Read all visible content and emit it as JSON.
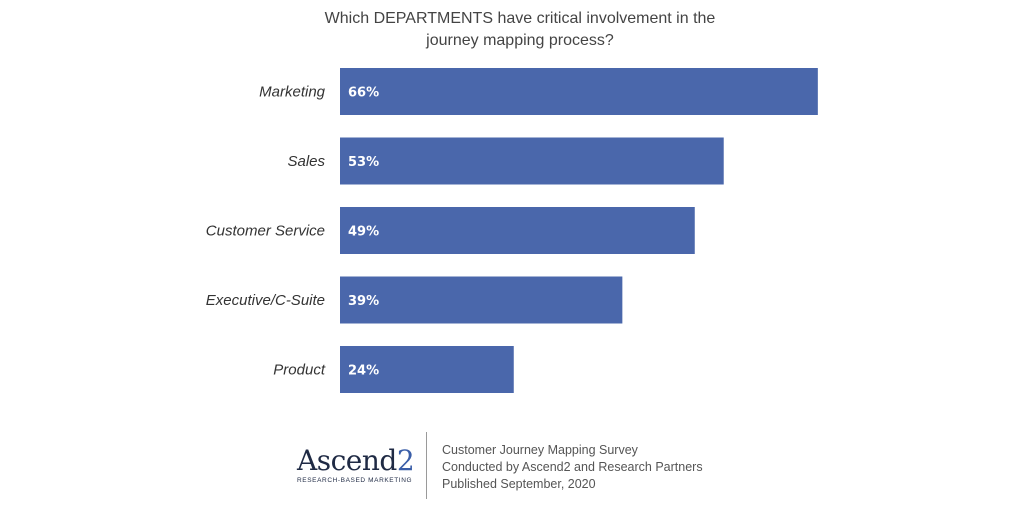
{
  "chart_data": {
    "type": "bar",
    "orientation": "horizontal",
    "title_lines": [
      "Which DEPARTMENTS have critical involvement in the",
      "journey mapping process?"
    ],
    "categories": [
      "Marketing",
      "Sales",
      "Customer Service",
      "Executive/C-Suite",
      "Product"
    ],
    "values": [
      66,
      53,
      49,
      39,
      24
    ],
    "value_labels": [
      "66%",
      "53%",
      "49%",
      "39%",
      "24%"
    ],
    "xlim": [
      0,
      100
    ],
    "grid": false,
    "bar_color": "#4a67ab"
  },
  "footer": {
    "logo": {
      "word_main": "Ascend",
      "word_accent": "2",
      "tagline": "RESEARCH-BASED MARKETING"
    },
    "credits": [
      "Customer Journey Mapping Survey",
      "Conducted by Ascend2 and Research Partners",
      "Published September, 2020"
    ]
  }
}
